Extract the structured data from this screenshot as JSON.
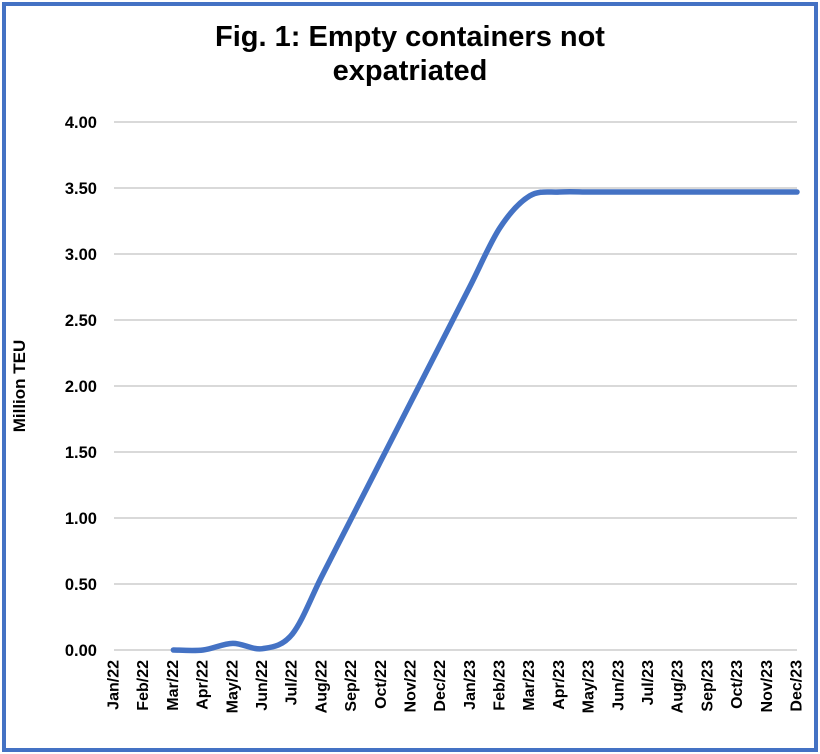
{
  "figure": {
    "border_color": "#4472C4",
    "background_color": "#FFFFFF"
  },
  "chart_data": {
    "type": "line",
    "title": "Fig. 1: Empty containers not expatriated",
    "xlabel": "",
    "ylabel": "Million TEU",
    "categories": [
      "Jan/22",
      "Feb/22",
      "Mar/22",
      "Apr/22",
      "May/22",
      "Jun/22",
      "Jul/22",
      "Aug/22",
      "Sep/22",
      "Oct/22",
      "Nov/22",
      "Dec/22",
      "Jan/23",
      "Feb/23",
      "Mar/23",
      "Apr/23",
      "May/23",
      "Jun/23",
      "Jul/23",
      "Aug/23",
      "Sep/23",
      "Oct/23",
      "Nov/23",
      "Dec/23"
    ],
    "values": [
      null,
      null,
      0.0,
      0.0,
      0.05,
      0.01,
      0.12,
      0.56,
      1.0,
      1.44,
      1.88,
      2.32,
      2.76,
      3.2,
      3.44,
      3.47,
      3.47,
      3.47,
      3.47,
      3.47,
      3.47,
      3.47,
      3.47,
      3.47
    ],
    "ylim": [
      0,
      4
    ],
    "ytick_step": 0.5,
    "ytick_labels": [
      "0.00",
      "0.50",
      "1.00",
      "1.50",
      "2.00",
      "2.50",
      "3.00",
      "3.50",
      "4.00"
    ],
    "grid": true,
    "legend": false,
    "smooth": true,
    "line_color": "#4472C4",
    "gridline_color": "#D9D9D9",
    "text_color": "#000000"
  }
}
